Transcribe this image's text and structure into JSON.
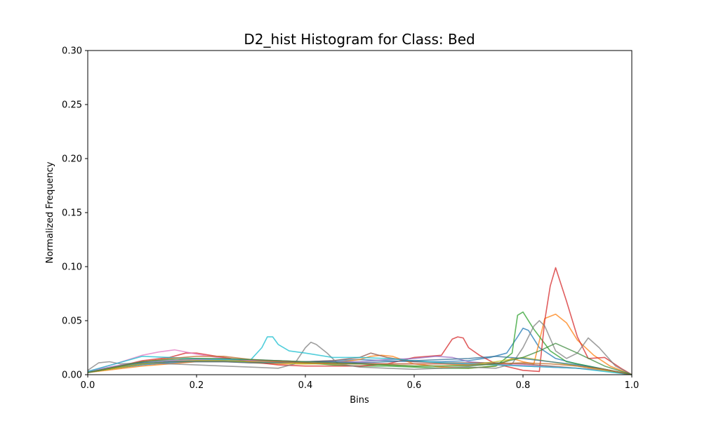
{
  "chart_data": {
    "type": "line",
    "title": "D2_hist Histogram for Class: Bed",
    "xlabel": "Bins",
    "ylabel": "Normalized Frequency",
    "xlim": [
      0.0,
      1.0
    ],
    "ylim": [
      0.0,
      0.3
    ],
    "xticks": [
      "0.0",
      "0.2",
      "0.4",
      "0.6",
      "0.8",
      "1.0"
    ],
    "xtick_values": [
      0.0,
      0.2,
      0.4,
      0.6,
      0.8,
      1.0
    ],
    "yticks": [
      "0.00",
      "0.05",
      "0.10",
      "0.15",
      "0.20",
      "0.25",
      "0.30"
    ],
    "ytick_values": [
      0.0,
      0.05,
      0.1,
      0.15,
      0.2,
      0.25,
      0.3
    ],
    "grid": false,
    "legend": "none",
    "series": [
      {
        "color": "#1f77b4",
        "x": [
          0.0,
          0.05,
          0.1,
          0.15,
          0.2,
          0.25,
          0.3,
          0.35,
          0.4,
          0.45,
          0.5,
          0.55,
          0.6,
          0.65,
          0.7,
          0.74,
          0.77,
          0.79,
          0.8,
          0.81,
          0.83,
          0.86,
          0.9,
          0.95,
          1.0
        ],
        "y": [
          0.002,
          0.006,
          0.009,
          0.011,
          0.012,
          0.012,
          0.012,
          0.012,
          0.012,
          0.013,
          0.014,
          0.013,
          0.012,
          0.012,
          0.013,
          0.016,
          0.02,
          0.035,
          0.043,
          0.041,
          0.025,
          0.015,
          0.01,
          0.005,
          0.0
        ]
      },
      {
        "color": "#ff7f0e",
        "x": [
          0.0,
          0.05,
          0.1,
          0.15,
          0.2,
          0.25,
          0.3,
          0.35,
          0.4,
          0.45,
          0.5,
          0.52,
          0.54,
          0.56,
          0.6,
          0.65,
          0.7,
          0.75,
          0.78,
          0.8,
          0.82,
          0.84,
          0.86,
          0.88,
          0.9,
          0.93,
          0.96,
          1.0
        ],
        "y": [
          0.002,
          0.005,
          0.008,
          0.01,
          0.012,
          0.012,
          0.011,
          0.01,
          0.01,
          0.011,
          0.014,
          0.017,
          0.018,
          0.017,
          0.01,
          0.007,
          0.006,
          0.008,
          0.015,
          0.012,
          0.01,
          0.052,
          0.056,
          0.048,
          0.032,
          0.018,
          0.008,
          0.0
        ]
      },
      {
        "color": "#2ca02c",
        "x": [
          0.0,
          0.05,
          0.1,
          0.15,
          0.2,
          0.25,
          0.3,
          0.35,
          0.4,
          0.45,
          0.5,
          0.55,
          0.6,
          0.65,
          0.7,
          0.75,
          0.78,
          0.79,
          0.8,
          0.82,
          0.85,
          0.88,
          0.92,
          0.96,
          1.0
        ],
        "y": [
          0.002,
          0.006,
          0.01,
          0.012,
          0.013,
          0.013,
          0.012,
          0.012,
          0.011,
          0.009,
          0.008,
          0.008,
          0.007,
          0.006,
          0.006,
          0.008,
          0.02,
          0.055,
          0.058,
          0.042,
          0.022,
          0.012,
          0.008,
          0.004,
          0.0
        ]
      },
      {
        "color": "#d62728",
        "x": [
          0.0,
          0.05,
          0.1,
          0.15,
          0.18,
          0.2,
          0.25,
          0.3,
          0.35,
          0.4,
          0.45,
          0.5,
          0.55,
          0.6,
          0.65,
          0.67,
          0.68,
          0.69,
          0.7,
          0.72,
          0.75,
          0.8,
          0.83,
          0.84,
          0.85,
          0.86,
          0.88,
          0.9,
          0.92,
          0.95,
          0.98,
          1.0
        ],
        "y": [
          0.002,
          0.007,
          0.013,
          0.016,
          0.02,
          0.02,
          0.016,
          0.012,
          0.009,
          0.008,
          0.008,
          0.008,
          0.01,
          0.016,
          0.018,
          0.033,
          0.035,
          0.034,
          0.025,
          0.018,
          0.01,
          0.004,
          0.003,
          0.05,
          0.082,
          0.099,
          0.068,
          0.035,
          0.015,
          0.016,
          0.006,
          0.0
        ]
      },
      {
        "color": "#9467bd",
        "x": [
          0.0,
          0.05,
          0.1,
          0.15,
          0.2,
          0.25,
          0.3,
          0.35,
          0.4,
          0.45,
          0.5,
          0.55,
          0.6,
          0.64,
          0.67,
          0.7,
          0.75,
          0.8,
          0.85,
          0.9,
          0.95,
          1.0
        ],
        "y": [
          0.003,
          0.008,
          0.012,
          0.013,
          0.014,
          0.014,
          0.014,
          0.013,
          0.012,
          0.012,
          0.012,
          0.014,
          0.015,
          0.017,
          0.016,
          0.012,
          0.01,
          0.008,
          0.007,
          0.006,
          0.004,
          0.0
        ]
      },
      {
        "color": "#8c564b",
        "x": [
          0.0,
          0.05,
          0.1,
          0.15,
          0.2,
          0.25,
          0.3,
          0.35,
          0.4,
          0.45,
          0.5,
          0.52,
          0.55,
          0.6,
          0.65,
          0.7,
          0.75,
          0.8,
          0.85,
          0.9,
          0.95,
          1.0
        ],
        "y": [
          0.002,
          0.006,
          0.01,
          0.012,
          0.013,
          0.013,
          0.013,
          0.013,
          0.012,
          0.013,
          0.016,
          0.02,
          0.016,
          0.012,
          0.011,
          0.011,
          0.011,
          0.01,
          0.008,
          0.006,
          0.004,
          0.0
        ]
      },
      {
        "color": "#e377c2",
        "x": [
          0.0,
          0.05,
          0.1,
          0.13,
          0.16,
          0.2,
          0.25,
          0.3,
          0.35,
          0.4,
          0.45,
          0.5,
          0.55,
          0.6,
          0.65,
          0.7,
          0.75,
          0.8,
          0.85,
          0.9,
          0.95,
          1.0
        ],
        "y": [
          0.003,
          0.01,
          0.018,
          0.021,
          0.023,
          0.019,
          0.015,
          0.013,
          0.012,
          0.012,
          0.011,
          0.011,
          0.01,
          0.01,
          0.01,
          0.01,
          0.009,
          0.009,
          0.007,
          0.006,
          0.004,
          0.0
        ]
      },
      {
        "color": "#7f7f7f",
        "x": [
          0.0,
          0.02,
          0.04,
          0.06,
          0.1,
          0.15,
          0.2,
          0.25,
          0.3,
          0.35,
          0.38,
          0.4,
          0.41,
          0.42,
          0.44,
          0.46,
          0.5,
          0.55,
          0.6,
          0.65,
          0.7,
          0.75,
          0.78,
          0.8,
          0.82,
          0.83,
          0.84,
          0.86,
          0.88,
          0.9,
          0.92,
          0.94,
          0.97,
          1.0
        ],
        "y": [
          0.004,
          0.011,
          0.012,
          0.01,
          0.011,
          0.01,
          0.009,
          0.008,
          0.007,
          0.006,
          0.01,
          0.025,
          0.03,
          0.028,
          0.02,
          0.01,
          0.007,
          0.006,
          0.005,
          0.006,
          0.007,
          0.006,
          0.01,
          0.025,
          0.045,
          0.05,
          0.045,
          0.022,
          0.015,
          0.02,
          0.034,
          0.025,
          0.008,
          0.0
        ]
      },
      {
        "color": "#bcbd22",
        "x": [
          0.0,
          0.05,
          0.1,
          0.15,
          0.2,
          0.25,
          0.3,
          0.35,
          0.4,
          0.45,
          0.5,
          0.55,
          0.6,
          0.65,
          0.7,
          0.75,
          0.8,
          0.85,
          0.9,
          0.95,
          1.0
        ],
        "y": [
          0.002,
          0.006,
          0.01,
          0.012,
          0.013,
          0.013,
          0.012,
          0.011,
          0.01,
          0.01,
          0.01,
          0.009,
          0.008,
          0.008,
          0.009,
          0.012,
          0.016,
          0.012,
          0.008,
          0.004,
          0.0
        ]
      },
      {
        "color": "#17becf",
        "x": [
          0.0,
          0.05,
          0.1,
          0.15,
          0.2,
          0.25,
          0.3,
          0.32,
          0.33,
          0.34,
          0.35,
          0.37,
          0.4,
          0.45,
          0.5,
          0.55,
          0.6,
          0.65,
          0.7,
          0.75,
          0.8,
          0.85,
          0.9,
          0.95,
          1.0
        ],
        "y": [
          0.003,
          0.01,
          0.017,
          0.016,
          0.015,
          0.014,
          0.014,
          0.025,
          0.035,
          0.035,
          0.028,
          0.022,
          0.02,
          0.016,
          0.016,
          0.015,
          0.013,
          0.011,
          0.01,
          0.009,
          0.008,
          0.007,
          0.006,
          0.003,
          0.0
        ]
      },
      {
        "color": "#2f6f96",
        "x": [
          0.0,
          0.05,
          0.1,
          0.15,
          0.2,
          0.25,
          0.3,
          0.35,
          0.4,
          0.45,
          0.5,
          0.55,
          0.6,
          0.65,
          0.7,
          0.75,
          0.8,
          0.85,
          0.9,
          0.95,
          1.0
        ],
        "y": [
          0.002,
          0.007,
          0.011,
          0.012,
          0.012,
          0.012,
          0.011,
          0.011,
          0.012,
          0.012,
          0.011,
          0.012,
          0.013,
          0.014,
          0.015,
          0.017,
          0.015,
          0.012,
          0.009,
          0.005,
          0.0
        ]
      },
      {
        "color": "#c06a28",
        "x": [
          0.0,
          0.05,
          0.1,
          0.15,
          0.2,
          0.25,
          0.3,
          0.35,
          0.4,
          0.45,
          0.5,
          0.55,
          0.6,
          0.65,
          0.7,
          0.75,
          0.8,
          0.85,
          0.9,
          0.95,
          1.0
        ],
        "y": [
          0.002,
          0.007,
          0.012,
          0.015,
          0.017,
          0.017,
          0.014,
          0.012,
          0.011,
          0.01,
          0.01,
          0.01,
          0.01,
          0.01,
          0.009,
          0.01,
          0.011,
          0.01,
          0.008,
          0.005,
          0.0
        ]
      },
      {
        "color": "#3c8a3c",
        "x": [
          0.0,
          0.05,
          0.1,
          0.15,
          0.2,
          0.25,
          0.3,
          0.35,
          0.4,
          0.45,
          0.5,
          0.55,
          0.6,
          0.65,
          0.7,
          0.75,
          0.8,
          0.83,
          0.86,
          0.9,
          0.95,
          1.0
        ],
        "y": [
          0.002,
          0.007,
          0.012,
          0.014,
          0.015,
          0.015,
          0.014,
          0.013,
          0.012,
          0.011,
          0.01,
          0.009,
          0.008,
          0.008,
          0.008,
          0.01,
          0.016,
          0.022,
          0.029,
          0.02,
          0.008,
          0.0
        ]
      }
    ]
  }
}
